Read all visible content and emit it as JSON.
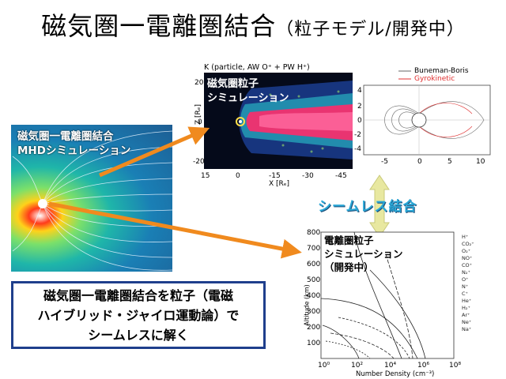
{
  "title": {
    "main": "磁気圏一電離圏結合",
    "sub": "（粒子モデル/開発中）"
  },
  "mhd_panel": {
    "line1": "磁気圏一電離圏結合",
    "line2": "MHDシミュレーション"
  },
  "particle_panel": {
    "header": "K (particle, AW O⁺ + PW H⁺)",
    "line1": "磁気圏粒子",
    "line2": "シミュレーション",
    "y_axis_label": "Z [Rₑ]",
    "x_axis_label": "X [Rₑ]",
    "x_ticks": [
      "15",
      "0",
      "-15",
      "-30",
      "-45"
    ],
    "y_ticks": [
      "20",
      "0",
      "-20"
    ]
  },
  "gyro_panel": {
    "legend": [
      "Buneman-Boris",
      "Gyrokinetic"
    ],
    "x_ticks": [
      "-5",
      "0",
      "5",
      "10"
    ],
    "y_ticks": [
      "4",
      "2",
      "0",
      "-2",
      "-4"
    ]
  },
  "seamless_label": "シームレス結合",
  "iono_panel": {
    "line1": "電離圏粒子",
    "line2": "シミュレーション",
    "line3": "（開発中）",
    "y_axis_label": "Altitude (km)",
    "x_axis_label": "Number Density (cm⁻³)",
    "y_ticks": [
      "800",
      "700",
      "600",
      "500",
      "400",
      "300",
      "200",
      "100"
    ],
    "x_ticks": [
      "10⁰",
      "10²",
      "10⁴",
      "10⁶",
      "10⁸"
    ],
    "legend": [
      "H⁺",
      "CO₂⁺",
      "O₂⁺",
      "NO⁺",
      "CO⁺",
      "N₂⁺",
      "O⁺",
      "N⁺",
      "C⁺",
      "He⁺",
      "H₂⁺",
      "Ar⁺",
      "Ne⁺",
      "Na⁺"
    ]
  },
  "textbox": {
    "line1": "磁気圏一電離圏結合を粒子（電磁",
    "line2": "ハイブリッド・ジャイロ運動論）で",
    "line3": "シームレスに解く"
  },
  "colors": {
    "arrow": "#f08a1e",
    "box_border": "#1f3f8c",
    "seamless": "#2aa7d6"
  }
}
